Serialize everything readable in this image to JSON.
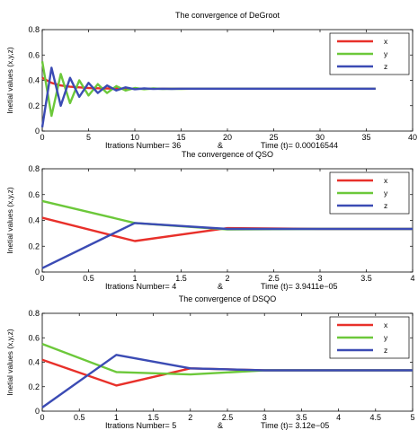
{
  "chart_data": [
    {
      "type": "line",
      "title": "The convergence of DeGroot",
      "ylabel": "Inetial values (x,y,z)",
      "footer": {
        "iterations_label": "Itrations Number= 36",
        "separator": "&",
        "time_label": "Time (t)=  0.00016544"
      },
      "xlim": [
        0,
        40
      ],
      "ylim": [
        0,
        0.8
      ],
      "xticks": [
        0,
        5,
        10,
        15,
        20,
        25,
        30,
        35,
        40
      ],
      "xtick_labels": [
        "0",
        "5",
        "10",
        "15",
        "20",
        "25",
        "30",
        "35",
        "40"
      ],
      "yticks": [
        0,
        0.2,
        0.4,
        0.6,
        0.8
      ],
      "ytick_labels": [
        "0",
        "0.2",
        "0.4",
        "0.6",
        "0.8"
      ],
      "legend": "top-right",
      "series": [
        {
          "name": "x",
          "color": "#e8302a",
          "x": [
            0,
            1,
            2,
            3,
            4,
            5,
            6,
            7,
            8,
            9,
            10,
            11,
            12,
            13,
            14,
            15,
            16,
            17,
            18,
            19,
            20,
            21,
            22,
            23,
            24,
            25,
            26,
            27,
            28,
            29,
            30,
            31,
            32,
            33,
            34,
            35,
            36
          ],
          "y": [
            0.42,
            0.38,
            0.36,
            0.35,
            0.345,
            0.34,
            0.338,
            0.336,
            0.335,
            0.334,
            0.334,
            0.334,
            0.334,
            0.334,
            0.334,
            0.334,
            0.334,
            0.334,
            0.334,
            0.334,
            0.334,
            0.334,
            0.334,
            0.334,
            0.334,
            0.334,
            0.334,
            0.334,
            0.334,
            0.334,
            0.334,
            0.334,
            0.334,
            0.334,
            0.334,
            0.334,
            0.334
          ]
        },
        {
          "name": "y",
          "color": "#6cc83a",
          "x": [
            0,
            1,
            2,
            3,
            4,
            5,
            6,
            7,
            8,
            9,
            10,
            11,
            12,
            13,
            14,
            15,
            16,
            17,
            18,
            19,
            20,
            21,
            22,
            23,
            24,
            25,
            26,
            27,
            28,
            29,
            30,
            31,
            32,
            33,
            34,
            35,
            36
          ],
          "y": [
            0.55,
            0.12,
            0.45,
            0.22,
            0.4,
            0.28,
            0.37,
            0.3,
            0.355,
            0.32,
            0.34,
            0.33,
            0.336,
            0.332,
            0.334,
            0.333,
            0.334,
            0.334,
            0.334,
            0.334,
            0.334,
            0.334,
            0.334,
            0.334,
            0.334,
            0.334,
            0.334,
            0.334,
            0.334,
            0.334,
            0.334,
            0.334,
            0.334,
            0.334,
            0.334,
            0.334,
            0.334
          ]
        },
        {
          "name": "z",
          "color": "#3b4bb4",
          "x": [
            0,
            1,
            2,
            3,
            4,
            5,
            6,
            7,
            8,
            9,
            10,
            11,
            12,
            13,
            14,
            15,
            16,
            17,
            18,
            19,
            20,
            21,
            22,
            23,
            24,
            25,
            26,
            27,
            28,
            29,
            30,
            31,
            32,
            33,
            34,
            35,
            36
          ],
          "y": [
            0.03,
            0.5,
            0.2,
            0.42,
            0.27,
            0.38,
            0.3,
            0.36,
            0.32,
            0.345,
            0.33,
            0.336,
            0.332,
            0.334,
            0.333,
            0.334,
            0.334,
            0.334,
            0.334,
            0.334,
            0.334,
            0.334,
            0.334,
            0.334,
            0.334,
            0.334,
            0.334,
            0.334,
            0.334,
            0.334,
            0.334,
            0.334,
            0.334,
            0.334,
            0.334,
            0.334,
            0.334
          ]
        }
      ]
    },
    {
      "type": "line",
      "title": "The convergence of QSO",
      "ylabel": "Inetial values (x,y,z)",
      "footer": {
        "iterations_label": "Itrations Number= 4",
        "separator": "&",
        "time_label": "Time (t)= 3.9411e−05"
      },
      "xlim": [
        0,
        4
      ],
      "ylim": [
        0,
        0.8
      ],
      "xticks": [
        0,
        0.5,
        1,
        1.5,
        2,
        2.5,
        3,
        3.5,
        4
      ],
      "xtick_labels": [
        "0",
        "0.5",
        "1",
        "1.5",
        "2",
        "2.5",
        "3",
        "3.5",
        "4"
      ],
      "yticks": [
        0,
        0.2,
        0.4,
        0.6,
        0.8
      ],
      "ytick_labels": [
        "0",
        "0.2",
        "0.4",
        "0.6",
        "0.8"
      ],
      "legend": "top-right",
      "series": [
        {
          "name": "x",
          "color": "#e8302a",
          "x": [
            0,
            1,
            2,
            3,
            4
          ],
          "y": [
            0.42,
            0.24,
            0.34,
            0.334,
            0.334
          ]
        },
        {
          "name": "y",
          "color": "#6cc83a",
          "x": [
            0,
            1,
            2,
            3,
            4
          ],
          "y": [
            0.55,
            0.38,
            0.33,
            0.334,
            0.334
          ]
        },
        {
          "name": "z",
          "color": "#3b4bb4",
          "x": [
            0,
            1,
            2,
            3,
            4
          ],
          "y": [
            0.03,
            0.38,
            0.334,
            0.334,
            0.334
          ]
        }
      ]
    },
    {
      "type": "line",
      "title": "The convergence of DSQO",
      "ylabel": "Inetial values (x,y,z)",
      "footer": {
        "iterations_label": "Itrations Number= 5",
        "separator": "&",
        "time_label": "Time (t)= 3.12e−05"
      },
      "xlim": [
        0,
        5
      ],
      "ylim": [
        0,
        0.8
      ],
      "xticks": [
        0,
        0.5,
        1,
        1.5,
        2,
        2.5,
        3,
        3.5,
        4,
        4.5,
        5
      ],
      "xtick_labels": [
        "0",
        "0.5",
        "1",
        "1.5",
        "2",
        "2.5",
        "3",
        "3.5",
        "4",
        "4.5",
        "5"
      ],
      "yticks": [
        0,
        0.2,
        0.4,
        0.6,
        0.8
      ],
      "ytick_labels": [
        "0",
        "0.2",
        "0.4",
        "0.6",
        "0.8"
      ],
      "legend": "top-right",
      "series": [
        {
          "name": "x",
          "color": "#e8302a",
          "x": [
            0,
            1,
            2,
            3,
            4,
            5
          ],
          "y": [
            0.42,
            0.21,
            0.35,
            0.334,
            0.334,
            0.334
          ]
        },
        {
          "name": "y",
          "color": "#6cc83a",
          "x": [
            0,
            1,
            2,
            3,
            4,
            5
          ],
          "y": [
            0.55,
            0.32,
            0.3,
            0.334,
            0.334,
            0.334
          ]
        },
        {
          "name": "z",
          "color": "#3b4bb4",
          "x": [
            0,
            1,
            2,
            3,
            4,
            5
          ],
          "y": [
            0.03,
            0.46,
            0.35,
            0.334,
            0.334,
            0.334
          ]
        }
      ]
    }
  ]
}
